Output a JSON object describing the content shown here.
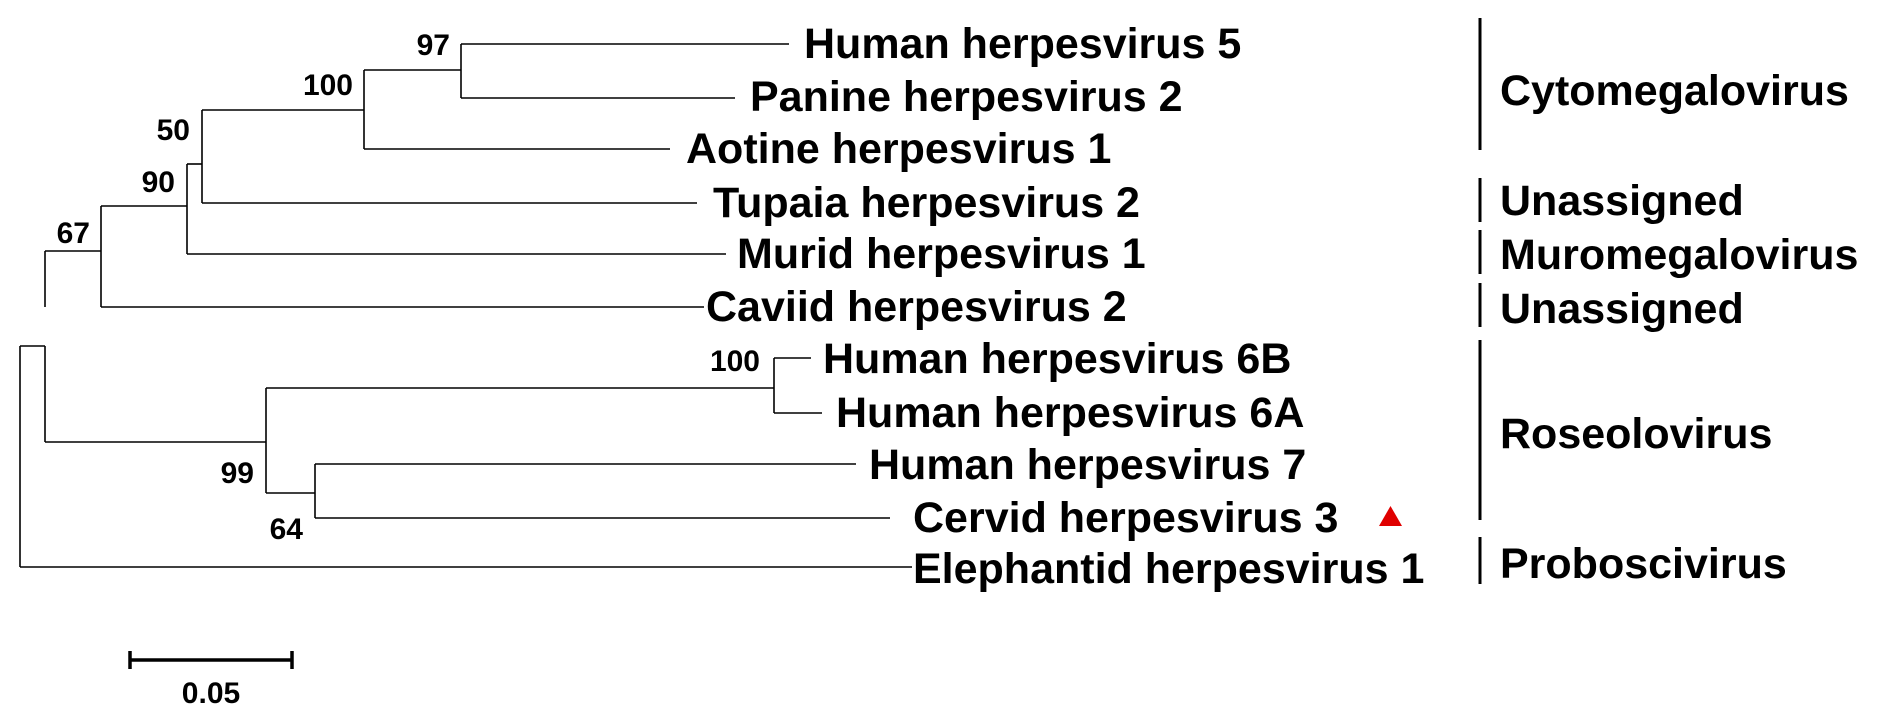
{
  "taxa": {
    "hhv5": "Human herpesvirus 5",
    "panhv2": "Panine herpesvirus 2",
    "aothv1": "Aotine herpesvirus 1",
    "tuphv2": "Tupaia herpesvirus 2",
    "murhv1": "Murid herpesvirus 1",
    "cavhv2": "Caviid herpesvirus 2",
    "hhv6b": "Human herpesvirus 6B",
    "hhv6a": "Human herpesvirus 6A",
    "hhv7": "Human herpesvirus 7",
    "cerhv3": "Cervid herpesvirus 3",
    "elehv1": "Elephantid herpesvirus 1"
  },
  "bootstrap": {
    "hhv5_panhv2": "97",
    "hhv5_panhv2_aothv1": "100",
    "cytomegalo_tupaia": "50",
    "with_murid": "90",
    "with_caviid": "67",
    "hhv6b_hhv6a": "100",
    "roseolo": "99",
    "hhv7_cerhv3": "64"
  },
  "genera": {
    "cytomegalovirus": "Cytomegalovirus",
    "unassigned_1": "Unassigned",
    "muromegalovirus": "Muromegalovirus",
    "unassigned_2": "Unassigned",
    "roseolovirus": "Roseolovirus",
    "proboscivirus": "Proboscivirus"
  },
  "scale": {
    "label": "0.05"
  },
  "colors": {
    "marker": "#e00000"
  },
  "marker_icon": "triangle-marker-icon"
}
